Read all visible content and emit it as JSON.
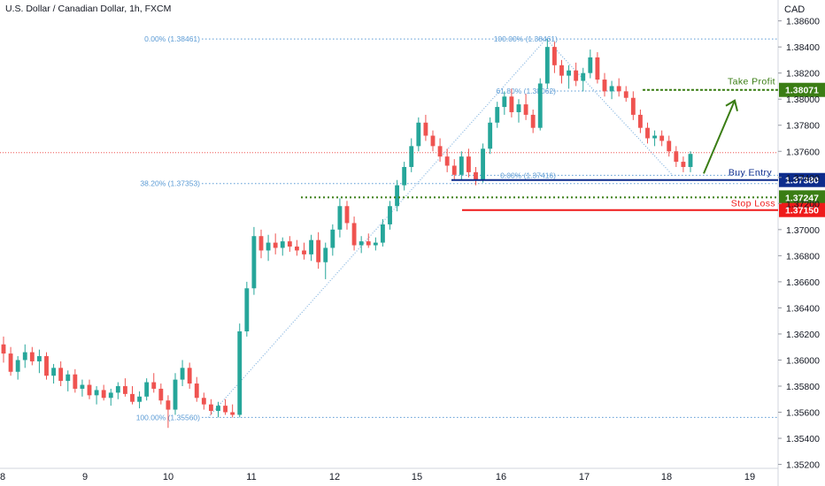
{
  "header": {
    "symbol": "U.S. Dollar / Canadian Dollar, 1h, FXCM",
    "currency": "CAD"
  },
  "colors": {
    "up": "#26a69a",
    "down": "#ef5350",
    "fib": "#5b9bd5",
    "take_profit": "#3a7d14",
    "buy_entry": "#0d2c8c",
    "stop_loss": "#ef1a1a",
    "current_price": "#ef5350"
  },
  "chart_data": {
    "type": "candlestick",
    "title": "U.S. Dollar / Canadian Dollar, 1h, FXCM",
    "y_axis_unit": "CAD",
    "ylim": [
      1.3517,
      1.3876
    ],
    "x_ticks": [
      "8",
      "9",
      "10",
      "11",
      "12",
      "15",
      "16",
      "17",
      "18",
      "19"
    ],
    "y_ticks": [
      "1.38600",
      "1.38400",
      "1.38200",
      "1.38000",
      "1.37800",
      "1.37600",
      "1.37400",
      "1.37200",
      "1.37000",
      "1.36800",
      "1.36600",
      "1.36400",
      "1.36200",
      "1.36000",
      "1.35800",
      "1.35600",
      "1.35400",
      "1.35200"
    ],
    "levels": [
      {
        "name": "Take Profit",
        "value": 1.38071,
        "label": "1.38071"
      },
      {
        "name": "Buy Entry",
        "value": 1.3738,
        "label": "1.37380"
      },
      {
        "name": "",
        "value": 1.37247,
        "label": "1.37247"
      },
      {
        "name": "Stop Loss",
        "value": 1.3715,
        "label": "1.37150"
      }
    ],
    "fib_labels": [
      {
        "text": "0.00% (1.38461)",
        "value": 1.38461
      },
      {
        "text": "38.20% (1.37353)",
        "value": 1.37353
      },
      {
        "text": "100.00% (1.35560)",
        "value": 1.3556
      },
      {
        "text": "100.00% (1.38461)",
        "value": 1.38461
      },
      {
        "text": "61.80% (1.38062)",
        "value": 1.38062
      },
      {
        "text": "0.00% (1.37416)",
        "value": 1.37416
      }
    ],
    "current_price": 1.3759,
    "candles": [
      [
        1.3612,
        1.3618,
        1.3598,
        1.3605
      ],
      [
        1.3605,
        1.361,
        1.3588,
        1.3591
      ],
      [
        1.3591,
        1.3603,
        1.3585,
        1.36
      ],
      [
        1.36,
        1.3612,
        1.3594,
        1.3606
      ],
      [
        1.3606,
        1.361,
        1.3596,
        1.3599
      ],
      [
        1.3599,
        1.3608,
        1.359,
        1.3603
      ],
      [
        1.3603,
        1.3606,
        1.3585,
        1.3588
      ],
      [
        1.3588,
        1.3597,
        1.3582,
        1.3594
      ],
      [
        1.3594,
        1.3599,
        1.358,
        1.3584
      ],
      [
        1.3584,
        1.3592,
        1.3576,
        1.3589
      ],
      [
        1.3589,
        1.3593,
        1.3575,
        1.3578
      ],
      [
        1.3578,
        1.3585,
        1.3572,
        1.3581
      ],
      [
        1.3581,
        1.3585,
        1.357,
        1.3573
      ],
      [
        1.3573,
        1.358,
        1.3566,
        1.3577
      ],
      [
        1.3577,
        1.3581,
        1.3569,
        1.3571
      ],
      [
        1.3571,
        1.3578,
        1.3565,
        1.3575
      ],
      [
        1.3575,
        1.3583,
        1.357,
        1.358
      ],
      [
        1.358,
        1.3586,
        1.3572,
        1.3574
      ],
      [
        1.3574,
        1.358,
        1.3566,
        1.3568
      ],
      [
        1.3568,
        1.3576,
        1.3563,
        1.3572
      ],
      [
        1.3572,
        1.3586,
        1.3569,
        1.3583
      ],
      [
        1.3583,
        1.359,
        1.3575,
        1.3578
      ],
      [
        1.3578,
        1.3582,
        1.3566,
        1.3569
      ],
      [
        1.3569,
        1.3573,
        1.3548,
        1.3562
      ],
      [
        1.3562,
        1.359,
        1.3558,
        1.3585
      ],
      [
        1.3585,
        1.36,
        1.358,
        1.3594
      ],
      [
        1.3594,
        1.3598,
        1.3578,
        1.3582
      ],
      [
        1.3582,
        1.3587,
        1.3568,
        1.3571
      ],
      [
        1.3571,
        1.3575,
        1.3562,
        1.3566
      ],
      [
        1.3566,
        1.357,
        1.3558,
        1.3561
      ],
      [
        1.3561,
        1.3568,
        1.3556,
        1.3565
      ],
      [
        1.3565,
        1.357,
        1.3558,
        1.356
      ],
      [
        1.356,
        1.3566,
        1.3556,
        1.3558
      ],
      [
        1.3558,
        1.3628,
        1.3556,
        1.3622
      ],
      [
        1.3622,
        1.366,
        1.3618,
        1.3655
      ],
      [
        1.3655,
        1.3702,
        1.365,
        1.3695
      ],
      [
        1.3695,
        1.37,
        1.3678,
        1.3684
      ],
      [
        1.3684,
        1.3696,
        1.3676,
        1.369
      ],
      [
        1.369,
        1.3697,
        1.3681,
        1.3686
      ],
      [
        1.3686,
        1.3694,
        1.368,
        1.3691
      ],
      [
        1.3691,
        1.3695,
        1.3683,
        1.3687
      ],
      [
        1.3687,
        1.3692,
        1.368,
        1.3684
      ],
      [
        1.3684,
        1.369,
        1.3677,
        1.3681
      ],
      [
        1.3681,
        1.3696,
        1.3676,
        1.3692
      ],
      [
        1.3692,
        1.3698,
        1.367,
        1.3675
      ],
      [
        1.3675,
        1.369,
        1.3662,
        1.3686
      ],
      [
        1.3686,
        1.3704,
        1.368,
        1.37
      ],
      [
        1.37,
        1.3724,
        1.3694,
        1.3718
      ],
      [
        1.3718,
        1.3722,
        1.37,
        1.3705
      ],
      [
        1.3705,
        1.371,
        1.3684,
        1.3688
      ],
      [
        1.3688,
        1.3695,
        1.3682,
        1.3691
      ],
      [
        1.3691,
        1.3697,
        1.3686,
        1.3688
      ],
      [
        1.3688,
        1.3694,
        1.3684,
        1.369
      ],
      [
        1.369,
        1.3708,
        1.3687,
        1.3704
      ],
      [
        1.3704,
        1.3722,
        1.37,
        1.3718
      ],
      [
        1.3718,
        1.3738,
        1.3714,
        1.3734
      ],
      [
        1.3734,
        1.3752,
        1.373,
        1.3748
      ],
      [
        1.3748,
        1.377,
        1.3744,
        1.3764
      ],
      [
        1.3764,
        1.3786,
        1.376,
        1.3782
      ],
      [
        1.3782,
        1.3788,
        1.3768,
        1.3772
      ],
      [
        1.3772,
        1.3776,
        1.376,
        1.3764
      ],
      [
        1.3764,
        1.377,
        1.3752,
        1.3756
      ],
      [
        1.3756,
        1.3762,
        1.3744,
        1.3749
      ],
      [
        1.3749,
        1.3754,
        1.3738,
        1.3742
      ],
      [
        1.3742,
        1.376,
        1.3738,
        1.3756
      ],
      [
        1.3756,
        1.3762,
        1.374,
        1.3744
      ],
      [
        1.3744,
        1.3748,
        1.3734,
        1.3738
      ],
      [
        1.3738,
        1.3766,
        1.3736,
        1.3762
      ],
      [
        1.3762,
        1.3786,
        1.3758,
        1.3782
      ],
      [
        1.3782,
        1.3798,
        1.3778,
        1.3794
      ],
      [
        1.3794,
        1.3806,
        1.3788,
        1.3802
      ],
      [
        1.3802,
        1.3808,
        1.3786,
        1.379
      ],
      [
        1.379,
        1.38,
        1.3782,
        1.3796
      ],
      [
        1.3796,
        1.3804,
        1.3784,
        1.3788
      ],
      [
        1.3788,
        1.3792,
        1.3774,
        1.3778
      ],
      [
        1.3778,
        1.3816,
        1.3776,
        1.3812
      ],
      [
        1.3812,
        1.3846,
        1.3808,
        1.384
      ],
      [
        1.384,
        1.3844,
        1.382,
        1.3826
      ],
      [
        1.3826,
        1.383,
        1.3812,
        1.3818
      ],
      [
        1.3818,
        1.3826,
        1.3808,
        1.3822
      ],
      [
        1.3822,
        1.3828,
        1.381,
        1.3814
      ],
      [
        1.3814,
        1.3824,
        1.3806,
        1.382
      ],
      [
        1.382,
        1.3838,
        1.3816,
        1.3832
      ],
      [
        1.3832,
        1.3836,
        1.3812,
        1.3815
      ],
      [
        1.3815,
        1.382,
        1.3802,
        1.3806
      ],
      [
        1.3806,
        1.3814,
        1.38,
        1.381
      ],
      [
        1.381,
        1.3816,
        1.3802,
        1.3806
      ],
      [
        1.3806,
        1.381,
        1.3798,
        1.3801
      ],
      [
        1.3801,
        1.3806,
        1.3784,
        1.3788
      ],
      [
        1.3788,
        1.3792,
        1.3774,
        1.3778
      ],
      [
        1.3778,
        1.3782,
        1.3766,
        1.377
      ],
      [
        1.377,
        1.3776,
        1.3764,
        1.3772
      ],
      [
        1.3772,
        1.3776,
        1.3764,
        1.3768
      ],
      [
        1.3768,
        1.3772,
        1.3756,
        1.376
      ],
      [
        1.376,
        1.3764,
        1.3748,
        1.3752
      ],
      [
        1.3752,
        1.3756,
        1.3744,
        1.3748
      ],
      [
        1.3748,
        1.376,
        1.3744,
        1.3758
      ]
    ]
  }
}
